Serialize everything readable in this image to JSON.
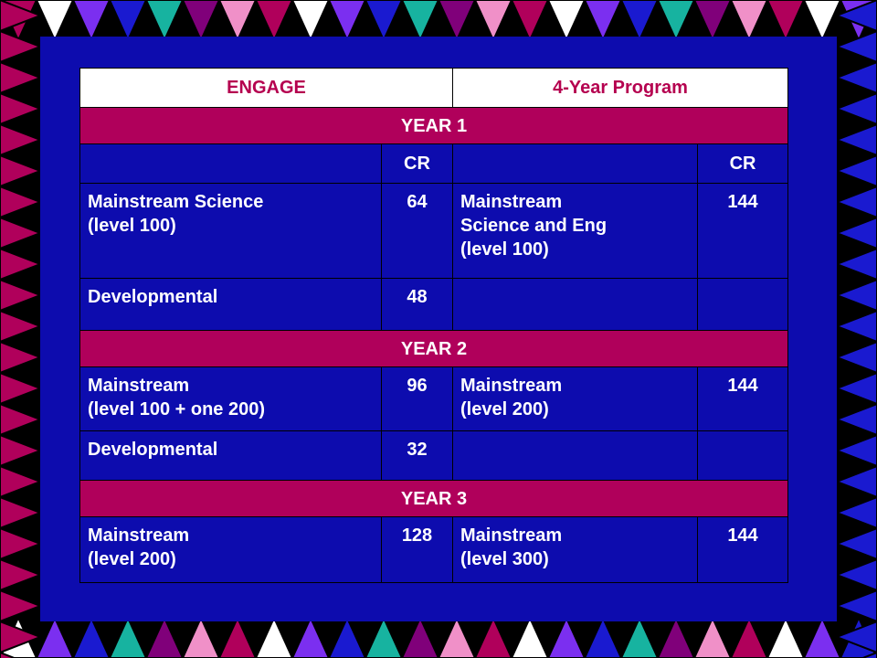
{
  "header": {
    "col1": "ENGAGE",
    "col2": "4-Year Program"
  },
  "year1": {
    "title": "YEAR 1",
    "cr_left": "CR",
    "cr_right": "CR",
    "row1": {
      "left_label": "Mainstream Science\n(level 100)",
      "left_value": "64",
      "right_label": "Mainstream\nScience and Eng\n(level 100)",
      "right_value": "144"
    },
    "row2": {
      "left_label": "Developmental",
      "left_value": "48"
    }
  },
  "year2": {
    "title": "YEAR 2",
    "row1": {
      "left_label": "Mainstream\n(level 100 + one 200)",
      "left_value": "96",
      "right_label": "Mainstream\n(level 200)",
      "right_value": "144"
    },
    "row2": {
      "left_label": "Developmental",
      "left_value": "32"
    }
  },
  "year3": {
    "title": "YEAR 3",
    "row1": {
      "left_label": "Mainstream\n(level 200)",
      "left_value": "128",
      "right_label": "Mainstream\n(level 300)",
      "right_value": "144"
    }
  },
  "colors": {
    "background": "#0d0cae",
    "year_band": "#b0005b",
    "header_text": "#b5004f",
    "border_triangles": [
      "#b0005b",
      "#7b2ff0",
      "#17b3a0",
      "#f090c8",
      "#ffffff",
      "#1a1ad0",
      "#80007a"
    ]
  }
}
